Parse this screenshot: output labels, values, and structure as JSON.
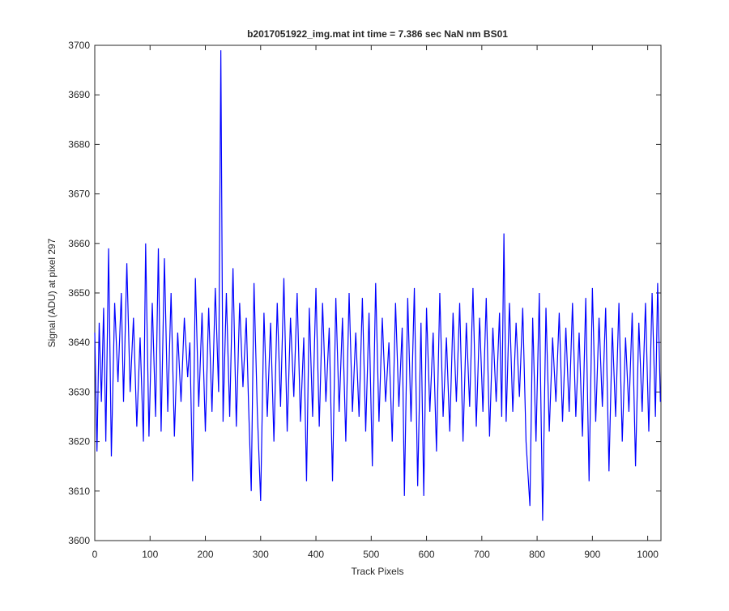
{
  "chart_data": {
    "type": "line",
    "title": "b2017051922_img.mat int time = 7.386 sec  NaN nm BS01",
    "x_label": "Track Pixels",
    "y_label": "Signal (ADU) at pixel 297",
    "color": "#0000ff",
    "x": [
      0,
      4,
      8,
      12,
      16,
      20,
      25,
      30,
      36,
      42,
      48,
      52,
      58,
      64,
      70,
      76,
      82,
      88,
      92,
      98,
      104,
      110,
      115,
      120,
      126,
      132,
      138,
      144,
      150,
      156,
      162,
      168,
      172,
      177,
      182,
      188,
      194,
      200,
      206,
      212,
      218,
      224,
      228,
      232,
      238,
      244,
      250,
      256,
      262,
      268,
      274,
      278,
      283,
      288,
      294,
      300,
      306,
      312,
      318,
      324,
      330,
      336,
      342,
      348,
      354,
      360,
      366,
      372,
      378,
      383,
      388,
      394,
      400,
      406,
      412,
      418,
      424,
      430,
      436,
      442,
      448,
      454,
      460,
      466,
      472,
      478,
      484,
      490,
      496,
      502,
      508,
      514,
      520,
      526,
      532,
      538,
      544,
      550,
      556,
      560,
      566,
      572,
      578,
      584,
      590,
      595,
      600,
      606,
      612,
      618,
      624,
      630,
      636,
      642,
      648,
      654,
      660,
      666,
      672,
      678,
      684,
      690,
      696,
      702,
      708,
      714,
      720,
      726,
      732,
      736,
      740,
      744,
      750,
      756,
      762,
      768,
      774,
      780,
      787,
      792,
      798,
      804,
      810,
      816,
      822,
      828,
      834,
      840,
      846,
      852,
      858,
      864,
      870,
      876,
      882,
      888,
      894,
      900,
      906,
      912,
      918,
      924,
      930,
      936,
      942,
      948,
      954,
      960,
      966,
      972,
      978,
      984,
      990,
      996,
      1002,
      1008,
      1014,
      1018,
      1023
    ],
    "values": [
      3642,
      3618,
      3644,
      3628,
      3647,
      3620,
      3659,
      3617,
      3648,
      3632,
      3650,
      3628,
      3656,
      3630,
      3645,
      3623,
      3641,
      3620,
      3660,
      3621,
      3648,
      3625,
      3659,
      3622,
      3657,
      3626,
      3650,
      3621,
      3642,
      3628,
      3645,
      3633,
      3640,
      3612,
      3653,
      3627,
      3646,
      3622,
      3647,
      3626,
      3651,
      3630,
      3699,
      3624,
      3650,
      3625,
      3655,
      3623,
      3648,
      3631,
      3645,
      3628,
      3610,
      3652,
      3626,
      3608,
      3646,
      3625,
      3644,
      3620,
      3648,
      3627,
      3653,
      3622,
      3645,
      3629,
      3650,
      3624,
      3641,
      3612,
      3647,
      3625,
      3651,
      3623,
      3648,
      3628,
      3643,
      3612,
      3649,
      3626,
      3645,
      3620,
      3650,
      3626,
      3642,
      3625,
      3649,
      3622,
      3646,
      3615,
      3652,
      3624,
      3645,
      3628,
      3640,
      3620,
      3648,
      3627,
      3643,
      3609,
      3649,
      3624,
      3651,
      3611,
      3644,
      3609,
      3647,
      3626,
      3642,
      3618,
      3650,
      3625,
      3641,
      3622,
      3646,
      3628,
      3648,
      3620,
      3644,
      3627,
      3651,
      3623,
      3645,
      3626,
      3649,
      3621,
      3643,
      3628,
      3646,
      3625,
      3662,
      3624,
      3648,
      3626,
      3644,
      3629,
      3647,
      3620,
      3607,
      3645,
      3620,
      3650,
      3604,
      3647,
      3622,
      3641,
      3628,
      3646,
      3624,
      3643,
      3626,
      3648,
      3625,
      3642,
      3621,
      3649,
      3612,
      3651,
      3624,
      3645,
      3627,
      3647,
      3614,
      3643,
      3625,
      3648,
      3620,
      3641,
      3626,
      3646,
      3615,
      3644,
      3626,
      3648,
      3622,
      3650,
      3625,
      3652,
      3628
    ],
    "xlim": [
      0,
      1024
    ],
    "ylim": [
      3600,
      3700
    ],
    "xticks": [
      0,
      100,
      200,
      300,
      400,
      500,
      600,
      700,
      800,
      900,
      1000
    ],
    "yticks": [
      3600,
      3610,
      3620,
      3630,
      3640,
      3650,
      3660,
      3670,
      3680,
      3690,
      3700
    ]
  }
}
